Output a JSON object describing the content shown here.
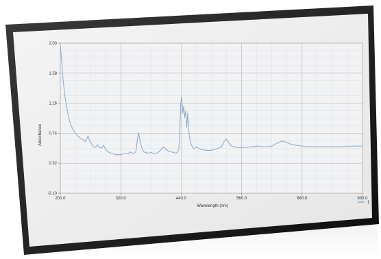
{
  "chart_data": {
    "type": "line",
    "xlabel": "Wavelength (nm)",
    "ylabel": "Absorbance",
    "xlim": [
      200,
      800
    ],
    "ylim": [
      -0.1,
      2.0
    ],
    "x_ticks": [
      "200.0",
      "320.0",
      "440.0",
      "560.0",
      "680.0",
      "800.0"
    ],
    "y_ticks": [
      "-0.10",
      "0.32",
      "0.74",
      "1.16",
      "1.58",
      "2.00"
    ],
    "grid": true,
    "legend": {
      "position": "bottom-right",
      "entries": [
        "1"
      ]
    },
    "series_color": "#8fb0d0",
    "series": [
      {
        "name": "1",
        "x": [
          200,
          203,
          206,
          210,
          214,
          218,
          222,
          226,
          230,
          235,
          240,
          245,
          250,
          255,
          258,
          262,
          266,
          270,
          274,
          278,
          282,
          286,
          290,
          295,
          300,
          305,
          310,
          315,
          320,
          325,
          330,
          335,
          338,
          342,
          346,
          350,
          355,
          360,
          365,
          370,
          375,
          380,
          384,
          388,
          392,
          396,
          400,
          405,
          410,
          415,
          420,
          425,
          430,
          435,
          437,
          439,
          441,
          443,
          445,
          447,
          449,
          451,
          453,
          456,
          460,
          465,
          470,
          475,
          480,
          490,
          500,
          510,
          520,
          525,
          530,
          535,
          540,
          545,
          550,
          560,
          570,
          580,
          590,
          600,
          610,
          620,
          630,
          640,
          650,
          660,
          670,
          680,
          690,
          700,
          720,
          740,
          760,
          780,
          800
        ],
        "y": [
          1.98,
          1.72,
          1.45,
          1.22,
          1.05,
          0.92,
          0.84,
          0.78,
          0.74,
          0.7,
          0.67,
          0.65,
          0.62,
          0.7,
          0.64,
          0.59,
          0.55,
          0.54,
          0.58,
          0.54,
          0.53,
          0.57,
          0.51,
          0.48,
          0.46,
          0.45,
          0.44,
          0.44,
          0.44,
          0.45,
          0.46,
          0.45,
          0.48,
          0.46,
          0.46,
          0.48,
          0.75,
          0.58,
          0.48,
          0.47,
          0.46,
          0.47,
          0.46,
          0.46,
          0.46,
          0.48,
          0.51,
          0.55,
          0.51,
          0.49,
          0.48,
          0.47,
          0.46,
          0.5,
          0.7,
          1.15,
          1.25,
          1.02,
          1.12,
          0.96,
          1.05,
          0.82,
          1.02,
          0.7,
          0.58,
          0.52,
          0.55,
          0.53,
          0.51,
          0.5,
          0.5,
          0.52,
          0.55,
          0.62,
          0.66,
          0.6,
          0.56,
          0.55,
          0.54,
          0.54,
          0.54,
          0.55,
          0.56,
          0.55,
          0.55,
          0.56,
          0.6,
          0.63,
          0.61,
          0.58,
          0.57,
          0.56,
          0.55,
          0.55,
          0.55,
          0.55,
          0.55,
          0.56,
          0.56
        ]
      }
    ]
  }
}
